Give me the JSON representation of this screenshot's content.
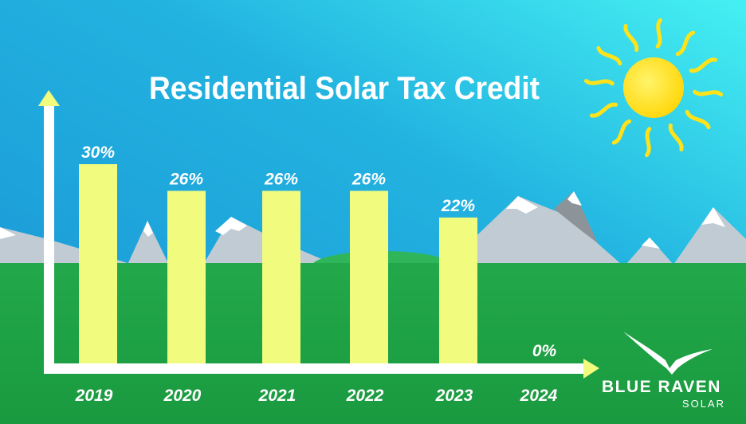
{
  "chart_data": {
    "type": "bar",
    "title": "Residential Solar Tax Credit",
    "categories": [
      "2019",
      "2020",
      "2021",
      "2022",
      "2023",
      "2024"
    ],
    "values": [
      30,
      26,
      26,
      26,
      22,
      0
    ],
    "data_labels": [
      "30%",
      "26%",
      "26%",
      "26%",
      "22%",
      "0%"
    ],
    "xlabel": "",
    "ylabel": "",
    "ylim": [
      0,
      30
    ],
    "grid": false,
    "bar_color": "#f1fb7e"
  },
  "logo": {
    "name": "BLUE RAVEN",
    "sub": "SOLAR"
  },
  "colors": {
    "sky": "#1fa6dc",
    "ground": "#1d9a45",
    "sun": "#ffe21a",
    "axis": "#ffffff"
  }
}
